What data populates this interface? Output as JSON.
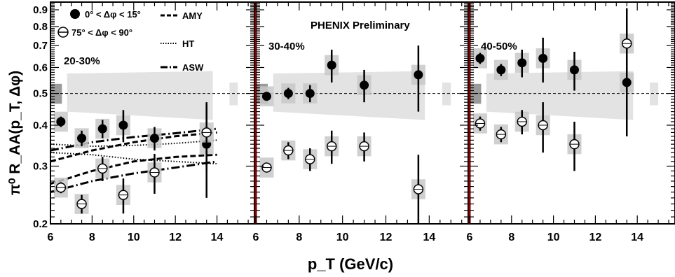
{
  "figure": {
    "y_axis_label": "π⁰  R_AA(p_T, Δφ)",
    "x_axis_label": "p_T (GeV/c)",
    "preliminary": "PHENIX Preliminary",
    "reference_line": 0.5,
    "y_tick_labels": [
      "0.9",
      "0.8",
      "0.7",
      "0.6",
      "0.5",
      "0.4",
      "0.3",
      "0.2"
    ],
    "x_tick_labels": [
      "6",
      "8",
      "10",
      "12",
      "14"
    ],
    "legend": {
      "filled": "0° < Δφ < 15°",
      "open": "75° < Δφ < 90°",
      "curves": [
        "AMY",
        "HT",
        "ASW"
      ]
    },
    "colors": {
      "band": "#e3e3e3",
      "sys_box": "#c8c8c8",
      "norm_box": "#9a9a9a",
      "panel_edge": "#8b0000"
    }
  },
  "chart_data": [
    {
      "type": "scatter",
      "panel_label": "20-30%",
      "x_scale": "linear",
      "y_scale": "log",
      "xlim": [
        6,
        15.8
      ],
      "ylim": [
        0.2,
        0.95
      ],
      "series": [
        {
          "name": "0° < Δφ < 15°",
          "marker": "filled-circle",
          "x": [
            6.5,
            7.5,
            8.5,
            9.5,
            11.0,
            13.5
          ],
          "y": [
            0.41,
            0.365,
            0.39,
            0.4,
            0.365,
            0.35
          ],
          "err": [
            0.015,
            0.02,
            0.025,
            0.045,
            0.03,
            0.11
          ]
        },
        {
          "name": "75° < Δφ < 90°",
          "marker": "open-circle",
          "x": [
            6.5,
            7.5,
            8.5,
            9.5,
            11.0,
            13.5
          ],
          "y": [
            0.258,
            0.23,
            0.295,
            0.245,
            0.287,
            0.38
          ],
          "err": [
            0.01,
            0.015,
            0.025,
            0.03,
            0.04,
            0.09
          ]
        },
        {
          "name": "AMY",
          "style": "dashed",
          "x": [
            6,
            8,
            10,
            12,
            14
          ],
          "y": [
            0.265,
            0.29,
            0.31,
            0.32,
            0.325
          ]
        },
        {
          "name": "AMY",
          "style": "dashed",
          "x": [
            6,
            8,
            10,
            12,
            14
          ],
          "y": [
            0.31,
            0.335,
            0.355,
            0.37,
            0.38
          ]
        },
        {
          "name": "HT",
          "style": "dotted",
          "x": [
            6,
            8,
            10,
            12,
            14
          ],
          "y": [
            0.35,
            0.345,
            0.347,
            0.352,
            0.36
          ]
        },
        {
          "name": "HT",
          "style": "dotted",
          "x": [
            6,
            8,
            10,
            12,
            14
          ],
          "y": [
            0.33,
            0.325,
            0.315,
            0.31,
            0.305
          ]
        },
        {
          "name": "ASW",
          "style": "dashdot",
          "x": [
            6,
            8,
            10,
            12,
            14
          ],
          "y": [
            0.25,
            0.27,
            0.285,
            0.297,
            0.31
          ]
        },
        {
          "name": "ASW",
          "style": "dashdot",
          "x": [
            6,
            8,
            10,
            12,
            14
          ],
          "y": [
            0.335,
            0.355,
            0.368,
            0.378,
            0.39
          ]
        }
      ]
    },
    {
      "type": "scatter",
      "panel_label": "30-40%",
      "x_scale": "linear",
      "y_scale": "log",
      "xlim": [
        6,
        15.8
      ],
      "ylim": [
        0.2,
        0.95
      ],
      "series": [
        {
          "name": "0° < Δφ < 15°",
          "marker": "filled-circle",
          "x": [
            6.5,
            7.5,
            8.5,
            9.5,
            11.0,
            13.5
          ],
          "y": [
            0.49,
            0.5,
            0.5,
            0.61,
            0.53,
            0.57
          ],
          "err": [
            0.015,
            0.02,
            0.03,
            0.07,
            0.06,
            0.13
          ]
        },
        {
          "name": "75° < Δφ < 90°",
          "marker": "open-circle",
          "x": [
            6.5,
            7.5,
            8.5,
            9.5,
            11.0,
            13.5
          ],
          "y": [
            0.297,
            0.335,
            0.315,
            0.345,
            0.345,
            0.255
          ],
          "err": [
            0.01,
            0.02,
            0.025,
            0.04,
            0.035,
            0.07
          ]
        }
      ]
    },
    {
      "type": "scatter",
      "panel_label": "40-50%",
      "x_scale": "linear",
      "y_scale": "log",
      "xlim": [
        6,
        15.8
      ],
      "ylim": [
        0.2,
        0.95
      ],
      "series": [
        {
          "name": "0° < Δφ < 15°",
          "marker": "filled-circle",
          "x": [
            6.5,
            7.5,
            8.5,
            9.5,
            11.0,
            13.5
          ],
          "y": [
            0.64,
            0.59,
            0.62,
            0.64,
            0.59,
            0.54
          ],
          "err": [
            0.025,
            0.025,
            0.06,
            0.1,
            0.08,
            0.17
          ]
        },
        {
          "name": "75° < Δφ < 90°",
          "marker": "open-circle",
          "x": [
            6.5,
            7.5,
            8.5,
            9.5,
            11.0,
            13.5
          ],
          "y": [
            0.405,
            0.375,
            0.41,
            0.4,
            0.35,
            0.71
          ],
          "err": [
            0.02,
            0.02,
            0.035,
            0.07,
            0.06,
            0.2
          ]
        }
      ]
    }
  ]
}
